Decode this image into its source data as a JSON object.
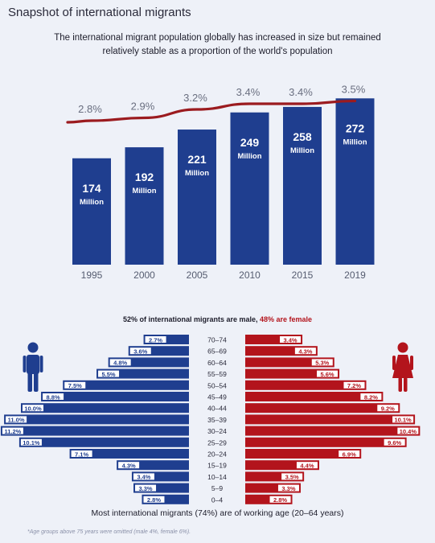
{
  "title": "Snapshot of international migrants",
  "subtitle_line1": "The international migrant population globally has increased in size but remained",
  "subtitle_line2": "relatively stable as a proportion of the world's population",
  "gender_text_pre": "52% of international migrants are male, ",
  "gender_text_female": "48% are female",
  "working_age_note": "Most international migrants (74%) are of working age (20–64 years)",
  "footnote": "*Age groups above 75 years were omitted (male 4%, female 6%).",
  "colors": {
    "blue": "#1f3e8f",
    "red": "#b3141c",
    "background": "#eef1f8"
  },
  "icons": [
    "male-person-icon",
    "female-person-icon"
  ],
  "chart_data": [
    {
      "type": "bar",
      "categories": [
        "1995",
        "2000",
        "2005",
        "2010",
        "2015",
        "2019"
      ],
      "values": [
        174,
        192,
        221,
        249,
        258,
        272
      ],
      "value_labels": [
        "174",
        "192",
        "221",
        "249",
        "258",
        "272"
      ],
      "unit_label": "Million",
      "line_series": {
        "values": [
          2.8,
          2.9,
          3.2,
          3.4,
          3.4,
          3.5
        ],
        "labels": [
          "2.8%",
          "2.9%",
          "3.2%",
          "3.4%",
          "3.4%",
          "3.5%"
        ]
      }
    },
    {
      "type": "bar",
      "age_groups": [
        "70–74",
        "65–69",
        "60–64",
        "55–59",
        "50–54",
        "45–49",
        "40–44",
        "35–39",
        "30–24",
        "25–29",
        "20–24",
        "15–19",
        "10–14",
        "5–9",
        "0–4"
      ],
      "series": [
        {
          "values": [
            2.7,
            3.6,
            4.8,
            5.5,
            7.5,
            8.8,
            10.0,
            11.0,
            11.2,
            10.1,
            7.1,
            4.3,
            3.4,
            3.3,
            2.8
          ],
          "labels": [
            "2.7%",
            "3.6%",
            "4.8%",
            "5.5%",
            "7.5%",
            "8.8%",
            "10.0%",
            "11.0%",
            "11.2%",
            "10.1%",
            "7.1%",
            "4.3%",
            "3.4%",
            "3.3%",
            "2.8%"
          ]
        },
        {
          "values": [
            3.4,
            4.3,
            5.3,
            5.6,
            7.2,
            8.2,
            9.2,
            10.1,
            10.4,
            9.6,
            6.9,
            4.4,
            3.5,
            3.3,
            2.8
          ],
          "labels": [
            "3.4%",
            "4.3%",
            "5.3%",
            "5.6%",
            "7.2%",
            "8.2%",
            "9.2%",
            "10.1%",
            "10.4%",
            "9.6%",
            "6.9%",
            "4.4%",
            "3.5%",
            "3.3%",
            "2.8%"
          ]
        }
      ]
    }
  ]
}
